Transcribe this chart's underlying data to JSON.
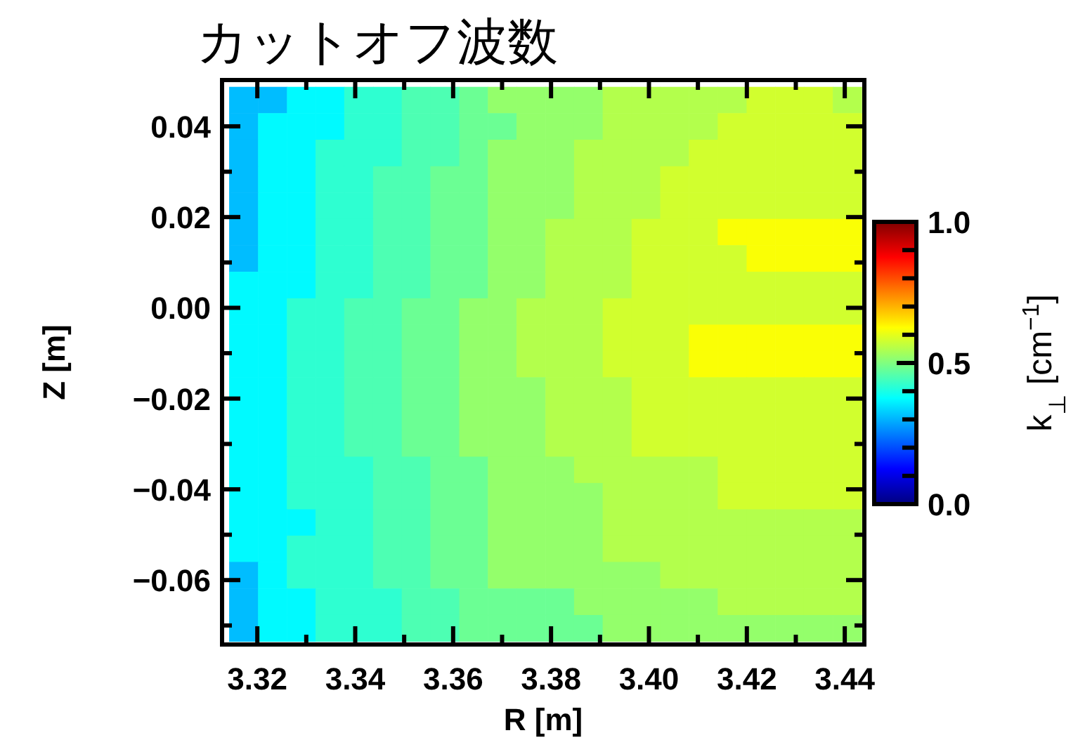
{
  "chart_data": {
    "type": "heatmap",
    "title": "カットオフ波数",
    "xlabel": "R [m]",
    "ylabel": "Z [m]",
    "clabel": "k$_{⊥}$ [cm$^{−1}$]",
    "x": [
      3.3172,
      3.3231,
      3.329,
      3.3348,
      3.3407,
      3.3466,
      3.3524,
      3.3583,
      3.3642,
      3.37,
      3.3759,
      3.3818,
      3.3876,
      3.3935,
      3.3994,
      3.4052,
      3.4111,
      3.417,
      3.4229,
      3.4287,
      3.4346,
      3.4405
    ],
    "y": [
      0.0458,
      0.04,
      0.0341,
      0.0283,
      0.0225,
      0.0167,
      0.0109,
      0.005,
      -0.0008,
      -0.0066,
      -0.0124,
      -0.0182,
      -0.024,
      -0.0299,
      -0.0357,
      -0.0415,
      -0.0473,
      -0.0531,
      -0.0589,
      -0.0648,
      -0.0706
    ],
    "cells": [
      [
        0.31,
        0.31,
        0.37,
        0.37,
        0.42,
        0.42,
        0.45,
        0.45,
        0.48,
        0.52,
        0.52,
        0.52,
        0.52,
        0.55,
        0.55,
        0.55,
        0.55,
        0.55,
        0.58,
        0.58,
        0.58,
        0.55
      ],
      [
        0.31,
        0.37,
        0.37,
        0.37,
        0.42,
        0.42,
        0.45,
        0.45,
        0.48,
        0.48,
        0.52,
        0.52,
        0.52,
        0.55,
        0.55,
        0.55,
        0.55,
        0.58,
        0.58,
        0.58,
        0.58,
        0.58
      ],
      [
        0.31,
        0.37,
        0.37,
        0.42,
        0.42,
        0.42,
        0.45,
        0.45,
        0.48,
        0.52,
        0.52,
        0.52,
        0.55,
        0.55,
        0.55,
        0.55,
        0.58,
        0.58,
        0.58,
        0.58,
        0.58,
        0.58
      ],
      [
        0.31,
        0.37,
        0.37,
        0.42,
        0.42,
        0.45,
        0.45,
        0.48,
        0.48,
        0.52,
        0.52,
        0.52,
        0.55,
        0.55,
        0.55,
        0.58,
        0.58,
        0.58,
        0.58,
        0.58,
        0.58,
        0.58
      ],
      [
        0.31,
        0.37,
        0.37,
        0.42,
        0.42,
        0.45,
        0.45,
        0.48,
        0.48,
        0.52,
        0.52,
        0.52,
        0.55,
        0.55,
        0.55,
        0.58,
        0.58,
        0.58,
        0.58,
        0.58,
        0.58,
        0.58
      ],
      [
        0.31,
        0.37,
        0.37,
        0.42,
        0.42,
        0.45,
        0.45,
        0.48,
        0.48,
        0.52,
        0.52,
        0.55,
        0.55,
        0.55,
        0.58,
        0.58,
        0.58,
        0.62,
        0.62,
        0.62,
        0.62,
        0.62
      ],
      [
        0.31,
        0.37,
        0.37,
        0.42,
        0.42,
        0.45,
        0.45,
        0.48,
        0.48,
        0.52,
        0.52,
        0.55,
        0.55,
        0.55,
        0.58,
        0.58,
        0.58,
        0.58,
        0.62,
        0.62,
        0.62,
        0.62
      ],
      [
        0.37,
        0.37,
        0.37,
        0.42,
        0.42,
        0.45,
        0.45,
        0.48,
        0.48,
        0.52,
        0.52,
        0.55,
        0.55,
        0.55,
        0.58,
        0.58,
        0.58,
        0.58,
        0.58,
        0.58,
        0.58,
        0.58
      ],
      [
        0.37,
        0.37,
        0.42,
        0.42,
        0.45,
        0.45,
        0.48,
        0.48,
        0.52,
        0.52,
        0.55,
        0.55,
        0.55,
        0.58,
        0.58,
        0.58,
        0.58,
        0.58,
        0.58,
        0.58,
        0.58,
        0.58
      ],
      [
        0.37,
        0.37,
        0.42,
        0.42,
        0.45,
        0.45,
        0.48,
        0.48,
        0.52,
        0.52,
        0.55,
        0.55,
        0.55,
        0.58,
        0.58,
        0.58,
        0.62,
        0.62,
        0.62,
        0.62,
        0.62,
        0.62
      ],
      [
        0.37,
        0.37,
        0.42,
        0.42,
        0.45,
        0.45,
        0.48,
        0.48,
        0.52,
        0.52,
        0.55,
        0.55,
        0.55,
        0.58,
        0.58,
        0.58,
        0.62,
        0.62,
        0.62,
        0.62,
        0.62,
        0.62
      ],
      [
        0.37,
        0.37,
        0.42,
        0.42,
        0.45,
        0.45,
        0.48,
        0.48,
        0.52,
        0.52,
        0.52,
        0.55,
        0.55,
        0.55,
        0.58,
        0.58,
        0.58,
        0.58,
        0.58,
        0.58,
        0.58,
        0.58
      ],
      [
        0.37,
        0.37,
        0.42,
        0.42,
        0.45,
        0.45,
        0.48,
        0.48,
        0.52,
        0.52,
        0.52,
        0.55,
        0.55,
        0.55,
        0.58,
        0.58,
        0.58,
        0.58,
        0.58,
        0.58,
        0.58,
        0.58
      ],
      [
        0.37,
        0.37,
        0.42,
        0.42,
        0.45,
        0.45,
        0.48,
        0.48,
        0.52,
        0.52,
        0.52,
        0.55,
        0.55,
        0.55,
        0.58,
        0.58,
        0.58,
        0.58,
        0.58,
        0.58,
        0.58,
        0.58
      ],
      [
        0.37,
        0.37,
        0.42,
        0.42,
        0.42,
        0.45,
        0.45,
        0.48,
        0.48,
        0.52,
        0.52,
        0.52,
        0.55,
        0.55,
        0.55,
        0.55,
        0.55,
        0.58,
        0.58,
        0.58,
        0.58,
        0.58
      ],
      [
        0.37,
        0.37,
        0.42,
        0.42,
        0.42,
        0.45,
        0.45,
        0.48,
        0.48,
        0.52,
        0.52,
        0.52,
        0.52,
        0.55,
        0.55,
        0.55,
        0.55,
        0.58,
        0.58,
        0.58,
        0.58,
        0.58
      ],
      [
        0.37,
        0.37,
        0.37,
        0.42,
        0.42,
        0.45,
        0.45,
        0.48,
        0.48,
        0.52,
        0.52,
        0.52,
        0.52,
        0.55,
        0.55,
        0.55,
        0.55,
        0.55,
        0.55,
        0.55,
        0.55,
        0.55
      ],
      [
        0.37,
        0.37,
        0.42,
        0.42,
        0.42,
        0.45,
        0.45,
        0.48,
        0.48,
        0.52,
        0.52,
        0.52,
        0.52,
        0.55,
        0.55,
        0.55,
        0.55,
        0.55,
        0.55,
        0.55,
        0.55,
        0.55
      ],
      [
        0.31,
        0.37,
        0.42,
        0.42,
        0.42,
        0.45,
        0.45,
        0.48,
        0.48,
        0.52,
        0.52,
        0.52,
        0.52,
        0.52,
        0.52,
        0.55,
        0.55,
        0.55,
        0.55,
        0.55,
        0.55,
        0.55
      ],
      [
        0.31,
        0.37,
        0.37,
        0.42,
        0.42,
        0.42,
        0.45,
        0.45,
        0.48,
        0.48,
        0.48,
        0.48,
        0.52,
        0.52,
        0.52,
        0.52,
        0.52,
        0.55,
        0.55,
        0.55,
        0.55,
        0.55
      ],
      [
        0.31,
        0.37,
        0.37,
        0.42,
        0.42,
        0.42,
        0.45,
        0.45,
        0.48,
        0.48,
        0.48,
        0.48,
        0.48,
        0.52,
        0.52,
        0.52,
        0.52,
        0.52,
        0.52,
        0.52,
        0.52,
        0.52
      ]
    ],
    "xlim": [
      3.3128,
      3.444
    ],
    "ylim": [
      -0.0742,
      0.0502
    ],
    "xticks": [
      3.32,
      {
        "value": 3.33,
        "label": null
      },
      3.34,
      {
        "value": 3.35,
        "label": null
      },
      3.36,
      {
        "value": 3.37,
        "label": null
      },
      3.38,
      {
        "value": 3.39,
        "label": null
      },
      {
        "value": 3.4,
        "label": "3.40"
      },
      {
        "value": 3.41,
        "label": null
      },
      3.42,
      {
        "value": 3.43,
        "label": null
      },
      3.44
    ],
    "yticks": [
      {
        "value": -0.07,
        "label": null
      },
      {
        "value": -0.06,
        "label": "−0.06"
      },
      {
        "value": -0.05,
        "label": null
      },
      {
        "value": -0.04,
        "label": "−0.04"
      },
      {
        "value": -0.03,
        "label": null
      },
      {
        "value": -0.02,
        "label": "−0.02"
      },
      {
        "value": -0.01,
        "label": null
      },
      {
        "value": 0,
        "label": "0.00"
      },
      {
        "value": 0.01,
        "label": null
      },
      0.02,
      {
        "value": 0.03,
        "label": null
      },
      0.04
    ],
    "clim": [
      0,
      1
    ],
    "cticks": [
      {
        "value": 0,
        "label": "0.0"
      },
      {
        "value": 0.1,
        "label": null
      },
      {
        "value": 0.2,
        "label": null
      },
      {
        "value": 0.3,
        "label": null
      },
      {
        "value": 0.4,
        "label": null
      },
      0.5,
      {
        "value": 0.6,
        "label": null
      },
      {
        "value": 0.7,
        "label": null
      },
      {
        "value": 0.8,
        "label": null
      },
      {
        "value": 0.9,
        "label": null
      },
      {
        "value": 1,
        "label": "1.0"
      }
    ]
  }
}
